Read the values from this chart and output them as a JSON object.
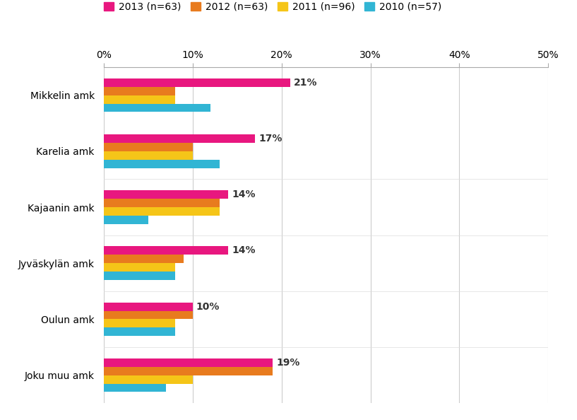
{
  "categories": [
    "Mikkelin amk",
    "Karelia amk",
    "Kajaanin amk",
    "Jyväskylän amk",
    "Oulun amk",
    "Joku muu amk"
  ],
  "series": {
    "2013 (n=63)": [
      21,
      17,
      14,
      14,
      10,
      19
    ],
    "2012 (n=63)": [
      8,
      10,
      13,
      9,
      10,
      19
    ],
    "2011 (n=96)": [
      8,
      10,
      13,
      8,
      8,
      10
    ],
    "2010 (n=57)": [
      12,
      13,
      5,
      8,
      8,
      7
    ]
  },
  "colors": {
    "2013 (n=63)": "#E8177F",
    "2012 (n=63)": "#E87B1E",
    "2011 (n=96)": "#F5C518",
    "2010 (n=57)": "#31B5D4"
  },
  "labels_2013": [
    21,
    17,
    14,
    14,
    10,
    19
  ],
  "xlim": [
    0,
    50
  ],
  "xticks": [
    0,
    10,
    20,
    30,
    40,
    50
  ],
  "xticklabels": [
    "0%",
    "10%",
    "20%",
    "30%",
    "40%",
    "50%"
  ],
  "background_color": "#FFFFFF",
  "bar_height": 0.15,
  "label_fontsize": 10,
  "tick_fontsize": 10,
  "ytick_fontsize": 10
}
